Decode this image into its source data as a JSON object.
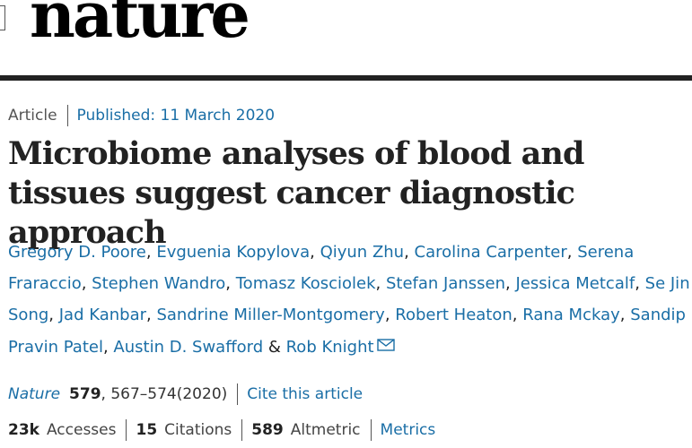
{
  "header": {
    "logo": "nature"
  },
  "article": {
    "type": "Article",
    "published": "Published: 11 March 2020",
    "title": "Microbiome analyses of blood and tissues suggest cancer diagnostic approach",
    "authors": [
      "Gregory D. Poore",
      "Evguenia Kopylova",
      "Qiyun Zhu",
      "Carolina Carpenter",
      "Serena Fraraccio",
      "Stephen Wandro",
      "Tomasz Kosciolek",
      "Stefan Janssen",
      "Jessica Metcalf",
      "Se Jin Song",
      "Jad Kanbar",
      "Sandrine Miller-Montgomery",
      "Robert Heaton",
      "Rana Mckay",
      "Sandip Pravin Patel",
      "Austin D. Swafford",
      "Rob Knight"
    ],
    "author_separator": ", ",
    "last_author_separator": " & ",
    "citation": {
      "journal": "Nature",
      "volume": "579",
      "pages": ", 567–574(2020)",
      "cite_link": "Cite this article"
    },
    "metrics": {
      "accesses_count": "23k",
      "accesses_label": "Accesses",
      "citations_count": "15",
      "citations_label": "Citations",
      "altmetric_count": "589",
      "altmetric_label": "Altmetric",
      "metrics_link": "Metrics"
    }
  },
  "icons": {
    "corresponding_author": "envelope-icon"
  },
  "colors": {
    "link": "#1a6ea6",
    "text": "#222222",
    "rule": "#222222"
  }
}
